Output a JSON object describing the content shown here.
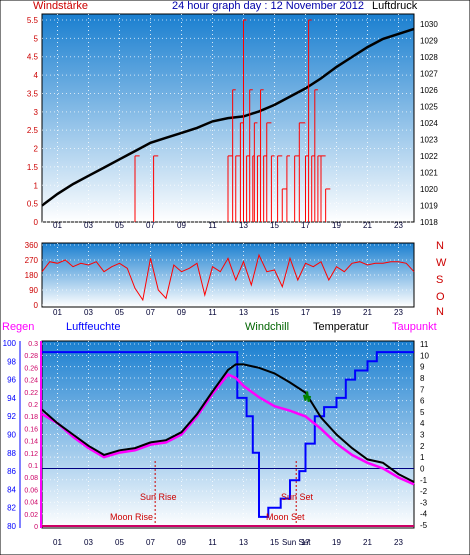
{
  "header": {
    "left": "Windstärke",
    "center": "24 hour graph day : 12 November 2012",
    "right": "Luftdruck"
  },
  "labels": {
    "regen": "Regen",
    "luftfeuchte": "Luftfeuchte",
    "windchill": "Windchill",
    "temperatur": "Temperatur",
    "taupunkt": "Taupunkt",
    "sun_rise": "Sun Rise",
    "moon_rise": "Moon Rise",
    "sun_set": "Sun Set",
    "moon_set": "Moon Set",
    "sun_set_axis": "Sun Set"
  },
  "colors": {
    "wind": "#ff0000",
    "pressure": "#000000",
    "humidity": "#0000ff",
    "temperature": "#000000",
    "dewpoint": "#ff00ff",
    "windchill": "#008000",
    "rain": "#cc0066",
    "header_left": "#cc0000",
    "header_center": "#0000aa",
    "header_right": "#000000",
    "bg_top": "#1a7fd0",
    "bg_bottom": "#ffffff"
  },
  "x_ticks": [
    "01",
    "03",
    "05",
    "07",
    "09",
    "11",
    "13",
    "15",
    "17",
    "19",
    "21",
    "23"
  ],
  "chart_data": [
    {
      "type": "line",
      "title": "24 hour graph day : 12 November 2012",
      "x_range": [
        0,
        24
      ],
      "y_left_label": "Windstärke",
      "y_left_ticks": [
        "0",
        "0.5",
        "1",
        "1.5",
        "2",
        "2.5",
        "3",
        "3.5",
        "4",
        "4.5",
        "5",
        "5.5"
      ],
      "y_left_range": [
        0,
        5.5
      ],
      "y_right_label": "Luftdruck",
      "y_right_ticks": [
        "1018",
        "1019",
        "1020",
        "1021",
        "1022",
        "1023",
        "1024",
        "1025",
        "1026",
        "1027",
        "1028",
        "1029",
        "1030"
      ],
      "y_right_range": [
        1018,
        1030
      ],
      "series": [
        {
          "name": "Luftdruck",
          "axis": "right",
          "x": [
            0,
            1,
            2,
            3,
            4,
            5,
            6,
            7,
            8,
            9,
            10,
            11,
            12,
            13,
            14,
            15,
            16,
            17,
            18,
            19,
            20,
            21,
            22,
            23,
            24
          ],
          "values": [
            1019.0,
            1019.7,
            1020.3,
            1020.8,
            1021.3,
            1021.8,
            1022.3,
            1022.8,
            1023.1,
            1023.4,
            1023.7,
            1024.1,
            1024.3,
            1024.4,
            1024.7,
            1025.1,
            1025.6,
            1026.1,
            1026.7,
            1027.4,
            1028.0,
            1028.6,
            1029.1,
            1029.4,
            1029.7
          ]
        },
        {
          "name": "Windstärke",
          "axis": "left",
          "x": [
            6,
            6.3,
            7.2,
            7.5,
            12.0,
            12.3,
            12.5,
            12.8,
            13.0,
            13.2,
            13.4,
            13.6,
            13.7,
            13.9,
            14.1,
            14.3,
            14.5,
            14.8,
            15.0,
            15.2,
            15.5,
            15.8,
            16.0,
            16.3,
            16.6,
            17.0,
            17.2,
            17.4,
            17.6,
            17.8,
            18.0,
            18.3,
            18.6
          ],
          "values": [
            1.8,
            0,
            1.8,
            0,
            1.8,
            3.6,
            1.8,
            2.7,
            5.5,
            1.8,
            3.6,
            1.8,
            2.7,
            1.8,
            3.6,
            1.8,
            2.7,
            1.8,
            0,
            1.8,
            0.9,
            1.8,
            0,
            1.8,
            2.7,
            1.8,
            5.5,
            1.8,
            3.6,
            1.8,
            1.8,
            0.9,
            0
          ]
        }
      ]
    },
    {
      "type": "line",
      "x_range": [
        0,
        24
      ],
      "y_left_ticks": [
        "0",
        "90",
        "180",
        "270",
        "360"
      ],
      "y_left_range": [
        0,
        360
      ],
      "y_right_ticks": [
        "N",
        "W",
        "S",
        "O",
        "N"
      ],
      "series": [
        {
          "name": "Windrichtung",
          "x": [
            0,
            0.5,
            1,
            1.5,
            2,
            2.5,
            3,
            3.5,
            4,
            4.5,
            5,
            5.5,
            6,
            6.5,
            7,
            7.5,
            8,
            8.5,
            9,
            9.5,
            10,
            10.5,
            11,
            11.5,
            12,
            12.5,
            13,
            13.5,
            14,
            14.5,
            15,
            15.5,
            16,
            16.5,
            17,
            17.5,
            18,
            18.5,
            19,
            19.5,
            20,
            20.5,
            21,
            21.5,
            22,
            22.5,
            23,
            23.5,
            24
          ],
          "values": [
            200,
            260,
            250,
            270,
            230,
            250,
            240,
            260,
            200,
            230,
            250,
            220,
            100,
            30,
            280,
            90,
            40,
            240,
            200,
            220,
            250,
            60,
            230,
            200,
            280,
            150,
            260,
            120,
            300,
            200,
            210,
            110,
            280,
            150,
            250,
            230,
            260,
            150,
            230,
            200,
            250,
            260,
            240,
            250,
            250,
            260,
            260,
            250,
            200
          ]
        }
      ]
    },
    {
      "type": "line",
      "x_range": [
        0,
        24
      ],
      "y_far_left_label": "Luftfeuchte",
      "y_far_left_ticks": [
        "80",
        "82",
        "84",
        "86",
        "88",
        "90",
        "92",
        "94",
        "96",
        "98",
        "100"
      ],
      "y_far_left_range": [
        80,
        100
      ],
      "y_left_label": "Regen",
      "y_left_ticks": [
        "0",
        "0.02",
        "0.04",
        "0.06",
        "0.08",
        "0.1",
        "0.12",
        "0.14",
        "0.16",
        "0.18",
        "0.2",
        "0.22",
        "0.24",
        "0.26",
        "0.28",
        "0.3"
      ],
      "y_left_range": [
        0,
        0.3
      ],
      "y_right_ticks": [
        "-5",
        "-4",
        "-3",
        "-2",
        "-1",
        "0",
        "1",
        "2",
        "3",
        "4",
        "5",
        "6",
        "7",
        "8",
        "9",
        "10",
        "11"
      ],
      "y_right_range": [
        -5,
        11
      ],
      "series": [
        {
          "name": "Temperatur",
          "axis": "right",
          "x": [
            0,
            1,
            2,
            3,
            4,
            5,
            6,
            7,
            8,
            9,
            10,
            11,
            12,
            12.5,
            13,
            14,
            15,
            16,
            17,
            18,
            19,
            20,
            21,
            22,
            23,
            24
          ],
          "values": [
            5.2,
            4.0,
            3.0,
            2.0,
            1.2,
            1.6,
            1.8,
            2.3,
            2.5,
            3.2,
            4.8,
            6.8,
            8.7,
            9.2,
            9.2,
            8.9,
            8.4,
            7.6,
            6.7,
            4.5,
            3.0,
            1.8,
            0.8,
            0.5,
            -0.5,
            -1.2
          ]
        },
        {
          "name": "Taupunkt",
          "axis": "right",
          "x": [
            0,
            1,
            2,
            3,
            4,
            5,
            6,
            7,
            8,
            9,
            10,
            11,
            12,
            12.5,
            13,
            14,
            15,
            16,
            17,
            18,
            19,
            20,
            21,
            22,
            23,
            24
          ],
          "values": [
            4.8,
            4.0,
            2.8,
            1.8,
            1.0,
            1.4,
            1.6,
            2.1,
            2.3,
            3.0,
            4.6,
            6.6,
            8.3,
            8.0,
            7.3,
            6.3,
            5.5,
            5.1,
            4.6,
            3.5,
            2.2,
            1.2,
            0.5,
            0.0,
            -0.8,
            -1.4
          ]
        },
        {
          "name": "Windchill",
          "axis": "right",
          "x": [
            16.9,
            17.0,
            17.1,
            17.2,
            17.3
          ],
          "values": [
            6.5,
            6.0,
            6.8,
            5.9,
            6.4
          ]
        },
        {
          "name": "Luftfeuchte",
          "axis": "far_left",
          "x": [
            0,
            12,
            12.6,
            13.2,
            13.6,
            14.0,
            14.6,
            15.4,
            16.0,
            16.6,
            17.0,
            17.6,
            18.2,
            19.0,
            19.6,
            20.2,
            21.0,
            21.6,
            22.0,
            24
          ],
          "values": [
            99,
            99,
            94,
            92,
            88,
            81,
            82,
            83,
            85,
            86,
            89,
            92,
            93,
            94,
            96,
            97,
            98,
            99,
            99,
            99
          ]
        },
        {
          "name": "Regen",
          "axis": "left",
          "x": [
            0,
            24
          ],
          "values": [
            0,
            0
          ]
        }
      ],
      "reference_lines": {
        "temperature_zero": 0
      },
      "events": {
        "sun_rise_hour": 7.3,
        "moon_rise_hour": 6.0,
        "sun_set_hour": 16.4,
        "moon_set_hour": 16.4
      }
    }
  ]
}
